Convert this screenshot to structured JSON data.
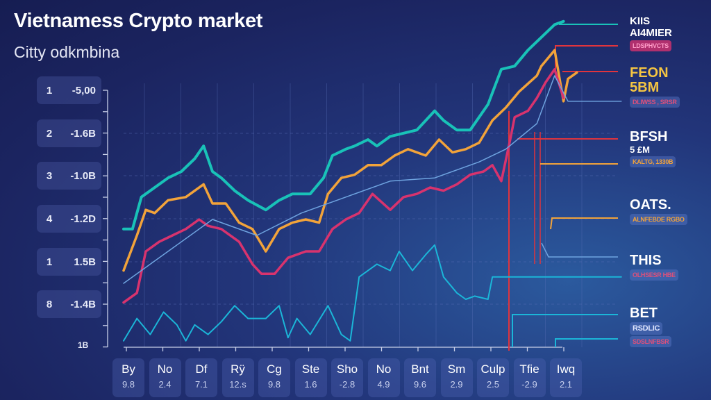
{
  "chart_data": {
    "type": "line",
    "title": "Vietnamess Crypto market",
    "subtitle": "Citty odkmbina",
    "xlim": [
      0,
      100
    ],
    "ylim": [
      0,
      100
    ],
    "grid": true,
    "y_ticks": [
      {
        "n": "1",
        "v": "-5,00"
      },
      {
        "n": "2",
        "v": "-1.6B"
      },
      {
        "n": "3",
        "v": "-1.0B"
      },
      {
        "n": "4",
        "v": "-1.2D"
      },
      {
        "n": "1",
        "v": "1.5B"
      },
      {
        "n": "8",
        "v": "-1.4B"
      }
    ],
    "y_bottom_label": "1B",
    "x_categories": [
      {
        "l": "By",
        "v": "9.8"
      },
      {
        "l": "No",
        "v": "2.4"
      },
      {
        "l": "Df",
        "v": "7.1"
      },
      {
        "l": "Rÿ",
        "v": "12.s"
      },
      {
        "l": "Cg",
        "v": "9.8"
      },
      {
        "l": "Ste",
        "v": "1.6"
      },
      {
        "l": "Sho",
        "v": "-2.8"
      },
      {
        "l": "No",
        "v": "4.9"
      },
      {
        "l": "Bnt",
        "v": "9.6"
      },
      {
        "l": "Sm",
        "v": "2.9"
      },
      {
        "l": "Culp",
        "v": "2.5"
      },
      {
        "l": "Tfie",
        "v": "-2.9"
      },
      {
        "l": "Iwq",
        "v": "2.1"
      }
    ],
    "series": [
      {
        "name": "teal",
        "color": "#19c2b8",
        "width": 4,
        "points": [
          [
            0,
            37
          ],
          [
            2,
            37
          ],
          [
            4,
            47
          ],
          [
            7,
            50
          ],
          [
            10,
            53
          ],
          [
            13,
            55
          ],
          [
            16,
            59
          ],
          [
            18,
            63
          ],
          [
            20,
            55
          ],
          [
            22,
            53
          ],
          [
            25,
            49
          ],
          [
            28,
            46
          ],
          [
            32,
            43
          ],
          [
            35,
            46
          ],
          [
            38,
            48
          ],
          [
            42,
            48
          ],
          [
            45,
            53
          ],
          [
            47,
            60
          ],
          [
            50,
            62
          ],
          [
            52,
            63
          ],
          [
            55,
            65
          ],
          [
            57,
            63
          ],
          [
            60,
            66
          ],
          [
            63,
            67
          ],
          [
            66,
            68
          ],
          [
            70,
            74
          ],
          [
            72,
            71
          ],
          [
            75,
            68
          ],
          [
            78,
            68
          ],
          [
            82,
            76
          ],
          [
            85,
            87
          ],
          [
            88,
            88
          ],
          [
            91,
            93
          ],
          [
            94,
            97
          ],
          [
            97,
            101
          ],
          [
            99,
            102
          ]
        ]
      },
      {
        "name": "orange",
        "color": "#f2a33a",
        "width": 3.5,
        "points": [
          [
            0,
            24
          ],
          [
            3,
            35
          ],
          [
            5,
            43
          ],
          [
            7,
            42
          ],
          [
            10,
            46
          ],
          [
            14,
            47
          ],
          [
            18,
            51
          ],
          [
            20,
            45
          ],
          [
            23,
            45
          ],
          [
            26,
            39
          ],
          [
            29,
            37
          ],
          [
            32,
            30
          ],
          [
            35,
            37
          ],
          [
            38,
            39
          ],
          [
            41,
            40
          ],
          [
            44,
            39
          ],
          [
            46,
            48
          ],
          [
            49,
            53
          ],
          [
            52,
            54
          ],
          [
            55,
            57
          ],
          [
            58,
            57
          ],
          [
            61,
            60
          ],
          [
            64,
            62
          ],
          [
            68,
            60
          ],
          [
            71,
            65
          ],
          [
            74,
            61
          ],
          [
            77,
            62
          ],
          [
            80,
            64
          ],
          [
            83,
            71
          ],
          [
            86,
            75
          ],
          [
            89,
            80
          ],
          [
            93,
            85
          ],
          [
            94,
            88
          ],
          [
            97,
            93
          ],
          [
            99,
            77
          ],
          [
            100,
            84
          ],
          [
            102,
            86
          ]
        ]
      },
      {
        "name": "pink",
        "color": "#d8336e",
        "width": 3.5,
        "points": [
          [
            0,
            14
          ],
          [
            3,
            17
          ],
          [
            5,
            30
          ],
          [
            8,
            33
          ],
          [
            11,
            35
          ],
          [
            14,
            37
          ],
          [
            17,
            40
          ],
          [
            19,
            38
          ],
          [
            22,
            37
          ],
          [
            26,
            33
          ],
          [
            29,
            26
          ],
          [
            31,
            23
          ],
          [
            34,
            23
          ],
          [
            37,
            28
          ],
          [
            41,
            30
          ],
          [
            44,
            30
          ],
          [
            47,
            37
          ],
          [
            50,
            40
          ],
          [
            53,
            42
          ],
          [
            56,
            48
          ],
          [
            60,
            43
          ],
          [
            63,
            47
          ],
          [
            66,
            48
          ],
          [
            69,
            50
          ],
          [
            72,
            49
          ],
          [
            75,
            51
          ],
          [
            78,
            54
          ],
          [
            81,
            55
          ],
          [
            83,
            57
          ],
          [
            85,
            52
          ],
          [
            87,
            65
          ],
          [
            88,
            72
          ],
          [
            91,
            74
          ],
          [
            93,
            78
          ],
          [
            95,
            83
          ],
          [
            97,
            87
          ],
          [
            99,
            78
          ]
        ]
      },
      {
        "name": "light-blue",
        "color": "#6fa4e0",
        "width": 1.5,
        "points": [
          [
            0,
            20
          ],
          [
            10,
            30
          ],
          [
            20,
            40
          ],
          [
            30,
            35
          ],
          [
            40,
            42
          ],
          [
            50,
            47
          ],
          [
            60,
            52
          ],
          [
            70,
            53
          ],
          [
            80,
            58
          ],
          [
            86,
            62
          ],
          [
            93,
            70
          ],
          [
            97,
            85
          ],
          [
            100,
            77
          ],
          [
            112,
            77
          ]
        ]
      },
      {
        "name": "cyan",
        "color": "#1bb6d8",
        "width": 2,
        "points": [
          [
            0,
            2
          ],
          [
            3,
            9
          ],
          [
            6,
            4
          ],
          [
            9,
            11
          ],
          [
            12,
            7
          ],
          [
            14,
            2
          ],
          [
            16,
            7
          ],
          [
            19,
            4
          ],
          [
            22,
            8
          ],
          [
            25,
            13
          ],
          [
            28,
            9
          ],
          [
            32,
            9
          ],
          [
            35,
            13
          ],
          [
            37,
            3
          ],
          [
            39,
            9
          ],
          [
            42,
            4
          ],
          [
            46,
            13
          ],
          [
            49,
            4
          ],
          [
            51,
            2
          ],
          [
            53,
            22
          ],
          [
            57,
            26
          ],
          [
            60,
            24
          ],
          [
            62,
            30
          ],
          [
            65,
            24
          ],
          [
            68,
            29
          ],
          [
            70,
            32
          ],
          [
            72,
            22
          ],
          [
            75,
            17
          ],
          [
            77,
            15
          ],
          [
            79,
            16
          ],
          [
            82,
            15
          ],
          [
            83,
            22
          ],
          [
            94,
            22
          ],
          [
            112,
            22
          ]
        ]
      }
    ],
    "legend": [
      {
        "title": "KIIS AI4MIER",
        "title_color": "#ffffff",
        "sub": "LDSPHVCTS",
        "sub_bg": "#b0306e"
      },
      {
        "title": "FEON",
        "line2": "5BM",
        "title_color": "#f5c542",
        "sub": "DLIWSS , SRSR",
        "sub_bg": ""
      },
      {
        "title": "BFSH",
        "line2": "5 £M",
        "title_color": "#ffffff",
        "sub": "KALTG, 1330B",
        "sub_bg": ""
      },
      {
        "title": "OATS.",
        "title_color": "#ffffff",
        "sub": "ALNFEBDE RGBO",
        "sub_bg": ""
      },
      {
        "title": "THIS",
        "title_color": "#ffffff",
        "sub": "OLHSESR HBE",
        "sub_bg": ""
      },
      {
        "title": "BET",
        "title_color": "#ffffff",
        "line2": "RSDLIC",
        "sub": "SDSLNFBSR",
        "sub_bg": ""
      }
    ]
  }
}
